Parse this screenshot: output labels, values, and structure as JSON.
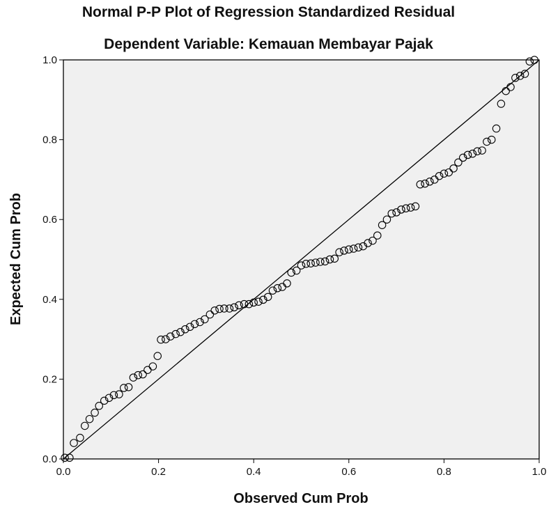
{
  "chart_data": {
    "type": "scatter",
    "title": "Normal P-P Plot of Regression Standardized Residual",
    "subtitle": "Dependent Variable: Kemauan Membayar Pajak",
    "xlabel": "Observed Cum Prob",
    "ylabel": "Expected Cum Prob",
    "xlim": [
      0,
      1
    ],
    "ylim": [
      0,
      1
    ],
    "x_ticks": [
      "0.0",
      "0.2",
      "0.4",
      "0.6",
      "0.8",
      "1.0"
    ],
    "y_ticks": [
      "0.0",
      "0.2",
      "0.4",
      "0.6",
      "0.8",
      "1.0"
    ],
    "reference_line": [
      [
        0,
        0
      ],
      [
        1,
        1
      ]
    ],
    "grid": false,
    "colors": {
      "plot_background": "#f0f0f0",
      "marker": "#000000",
      "line": "#000000"
    },
    "points": [
      [
        0.003,
        0.003
      ],
      [
        0.013,
        0.003
      ],
      [
        0.022,
        0.04
      ],
      [
        0.035,
        0.053
      ],
      [
        0.045,
        0.083
      ],
      [
        0.055,
        0.1
      ],
      [
        0.066,
        0.116
      ],
      [
        0.075,
        0.133
      ],
      [
        0.086,
        0.146
      ],
      [
        0.096,
        0.153
      ],
      [
        0.106,
        0.16
      ],
      [
        0.117,
        0.162
      ],
      [
        0.127,
        0.178
      ],
      [
        0.137,
        0.18
      ],
      [
        0.147,
        0.204
      ],
      [
        0.157,
        0.21
      ],
      [
        0.167,
        0.212
      ],
      [
        0.177,
        0.223
      ],
      [
        0.188,
        0.232
      ],
      [
        0.198,
        0.258
      ],
      [
        0.205,
        0.299
      ],
      [
        0.215,
        0.3
      ],
      [
        0.225,
        0.307
      ],
      [
        0.236,
        0.313
      ],
      [
        0.246,
        0.318
      ],
      [
        0.256,
        0.325
      ],
      [
        0.266,
        0.331
      ],
      [
        0.276,
        0.338
      ],
      [
        0.287,
        0.343
      ],
      [
        0.297,
        0.35
      ],
      [
        0.308,
        0.362
      ],
      [
        0.318,
        0.372
      ],
      [
        0.328,
        0.376
      ],
      [
        0.338,
        0.377
      ],
      [
        0.349,
        0.377
      ],
      [
        0.359,
        0.38
      ],
      [
        0.369,
        0.385
      ],
      [
        0.38,
        0.388
      ],
      [
        0.39,
        0.388
      ],
      [
        0.4,
        0.392
      ],
      [
        0.41,
        0.394
      ],
      [
        0.42,
        0.399
      ],
      [
        0.43,
        0.406
      ],
      [
        0.44,
        0.422
      ],
      [
        0.45,
        0.428
      ],
      [
        0.46,
        0.431
      ],
      [
        0.47,
        0.44
      ],
      [
        0.479,
        0.467
      ],
      [
        0.49,
        0.472
      ],
      [
        0.5,
        0.485
      ],
      [
        0.51,
        0.489
      ],
      [
        0.52,
        0.49
      ],
      [
        0.53,
        0.492
      ],
      [
        0.54,
        0.494
      ],
      [
        0.55,
        0.495
      ],
      [
        0.56,
        0.5
      ],
      [
        0.57,
        0.502
      ],
      [
        0.58,
        0.518
      ],
      [
        0.59,
        0.522
      ],
      [
        0.6,
        0.525
      ],
      [
        0.61,
        0.527
      ],
      [
        0.62,
        0.53
      ],
      [
        0.63,
        0.533
      ],
      [
        0.64,
        0.541
      ],
      [
        0.65,
        0.547
      ],
      [
        0.66,
        0.56
      ],
      [
        0.67,
        0.586
      ],
      [
        0.68,
        0.6
      ],
      [
        0.69,
        0.615
      ],
      [
        0.7,
        0.618
      ],
      [
        0.71,
        0.625
      ],
      [
        0.72,
        0.628
      ],
      [
        0.73,
        0.63
      ],
      [
        0.74,
        0.633
      ],
      [
        0.75,
        0.688
      ],
      [
        0.76,
        0.69
      ],
      [
        0.77,
        0.695
      ],
      [
        0.78,
        0.7
      ],
      [
        0.79,
        0.709
      ],
      [
        0.8,
        0.715
      ],
      [
        0.81,
        0.718
      ],
      [
        0.82,
        0.728
      ],
      [
        0.83,
        0.743
      ],
      [
        0.84,
        0.755
      ],
      [
        0.85,
        0.762
      ],
      [
        0.86,
        0.765
      ],
      [
        0.87,
        0.771
      ],
      [
        0.88,
        0.773
      ],
      [
        0.89,
        0.795
      ],
      [
        0.9,
        0.8
      ],
      [
        0.91,
        0.828
      ],
      [
        0.92,
        0.89
      ],
      [
        0.93,
        0.922
      ],
      [
        0.94,
        0.932
      ],
      [
        0.95,
        0.955
      ],
      [
        0.96,
        0.96
      ],
      [
        0.97,
        0.965
      ],
      [
        0.98,
        0.996
      ],
      [
        0.99,
        1.0
      ]
    ]
  }
}
